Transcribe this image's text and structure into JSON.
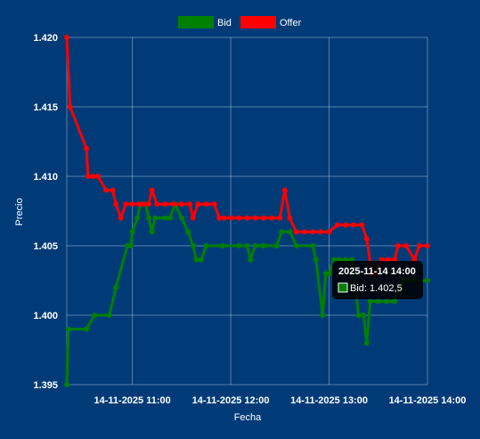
{
  "chart_data": {
    "type": "line",
    "xlabel": "Fecha",
    "ylabel": "Precio",
    "ylim": [
      1.395,
      1.42
    ],
    "xlim": [
      "2025-11-14T10:20",
      "2025-11-14T14:00"
    ],
    "y_ticks": [
      "1.395",
      "1.400",
      "1.405",
      "1.410",
      "1.415",
      "1.420"
    ],
    "x_ticks": [
      "14-11-2025 11:00",
      "14-11-2025 12:00",
      "14-11-2025 13:00",
      "14-11-2025 14:00"
    ],
    "grid": true,
    "legend_position": "top",
    "series": [
      {
        "name": "Bid",
        "color": "#008000",
        "points": [
          [
            "2025-11-14T10:20",
            1.395
          ],
          [
            "2025-11-14T10:21",
            1.399
          ],
          [
            "2025-11-14T10:32",
            1.399
          ],
          [
            "2025-11-14T10:37",
            1.4
          ],
          [
            "2025-11-14T10:46",
            1.4
          ],
          [
            "2025-11-14T10:50",
            1.402
          ],
          [
            "2025-11-14T10:57",
            1.405
          ],
          [
            "2025-11-14T10:59",
            1.405
          ],
          [
            "2025-11-14T11:00",
            1.406
          ],
          [
            "2025-11-14T11:03",
            1.407
          ],
          [
            "2025-11-14T11:05",
            1.408
          ],
          [
            "2025-11-14T11:08",
            1.408
          ],
          [
            "2025-11-14T11:10",
            1.407
          ],
          [
            "2025-11-14T11:12",
            1.406
          ],
          [
            "2025-11-14T11:14",
            1.407
          ],
          [
            "2025-11-14T11:20",
            1.407
          ],
          [
            "2025-11-14T11:23",
            1.407
          ],
          [
            "2025-11-14T11:26",
            1.408
          ],
          [
            "2025-11-14T11:30",
            1.407
          ],
          [
            "2025-11-14T11:34",
            1.406
          ],
          [
            "2025-11-14T11:37",
            1.405
          ],
          [
            "2025-11-14T11:39",
            1.404
          ],
          [
            "2025-11-14T11:42",
            1.404
          ],
          [
            "2025-11-14T11:45",
            1.405
          ],
          [
            "2025-11-14T11:55",
            1.405
          ],
          [
            "2025-11-14T12:05",
            1.405
          ],
          [
            "2025-11-14T12:10",
            1.405
          ],
          [
            "2025-11-14T12:12",
            1.404
          ],
          [
            "2025-11-14T12:15",
            1.405
          ],
          [
            "2025-11-14T12:20",
            1.405
          ],
          [
            "2025-11-14T12:28",
            1.405
          ],
          [
            "2025-11-14T12:31",
            1.406
          ],
          [
            "2025-11-14T12:36",
            1.406
          ],
          [
            "2025-11-14T12:40",
            1.405
          ],
          [
            "2025-11-14T12:50",
            1.405
          ],
          [
            "2025-11-14T12:52",
            1.404
          ],
          [
            "2025-11-14T12:56",
            1.4
          ],
          [
            "2025-11-14T12:58",
            1.403
          ],
          [
            "2025-11-14T13:00",
            1.403
          ],
          [
            "2025-11-14T13:03",
            1.404
          ],
          [
            "2025-11-14T13:06",
            1.404
          ],
          [
            "2025-11-14T13:10",
            1.404
          ],
          [
            "2025-11-14T13:14",
            1.404
          ],
          [
            "2025-11-14T13:18",
            1.4
          ],
          [
            "2025-11-14T13:21",
            1.4
          ],
          [
            "2025-11-14T13:23",
            1.398
          ],
          [
            "2025-11-14T13:25",
            1.401
          ],
          [
            "2025-11-14T13:30",
            1.401
          ],
          [
            "2025-11-14T13:35",
            1.401
          ],
          [
            "2025-11-14T13:40",
            1.401
          ],
          [
            "2025-11-14T13:45",
            1.4025
          ],
          [
            "2025-11-14T14:00",
            1.4025
          ]
        ]
      },
      {
        "name": "Offer",
        "color": "#ff0000",
        "points": [
          [
            "2025-11-14T10:20",
            1.42
          ],
          [
            "2025-11-14T10:22",
            1.415
          ],
          [
            "2025-11-14T10:32",
            1.412
          ],
          [
            "2025-11-14T10:33",
            1.41
          ],
          [
            "2025-11-14T10:36",
            1.41
          ],
          [
            "2025-11-14T10:39",
            1.41
          ],
          [
            "2025-11-14T10:44",
            1.409
          ],
          [
            "2025-11-14T10:48",
            1.409
          ],
          [
            "2025-11-14T10:50",
            1.408
          ],
          [
            "2025-11-14T10:53",
            1.407
          ],
          [
            "2025-11-14T10:56",
            1.408
          ],
          [
            "2025-11-14T11:00",
            1.408
          ],
          [
            "2025-11-14T11:04",
            1.408
          ],
          [
            "2025-11-14T11:07",
            1.408
          ],
          [
            "2025-11-14T11:10",
            1.408
          ],
          [
            "2025-11-14T11:12",
            1.409
          ],
          [
            "2025-11-14T11:15",
            1.408
          ],
          [
            "2025-11-14T11:20",
            1.408
          ],
          [
            "2025-11-14T11:25",
            1.408
          ],
          [
            "2025-11-14T11:30",
            1.408
          ],
          [
            "2025-11-14T11:35",
            1.408
          ],
          [
            "2025-11-14T11:37",
            1.407
          ],
          [
            "2025-11-14T11:40",
            1.408
          ],
          [
            "2025-11-14T11:45",
            1.408
          ],
          [
            "2025-11-14T11:50",
            1.408
          ],
          [
            "2025-11-14T11:53",
            1.407
          ],
          [
            "2025-11-14T11:56",
            1.407
          ],
          [
            "2025-11-14T12:00",
            1.407
          ],
          [
            "2025-11-14T12:05",
            1.407
          ],
          [
            "2025-11-14T12:10",
            1.407
          ],
          [
            "2025-11-14T12:15",
            1.407
          ],
          [
            "2025-11-14T12:20",
            1.407
          ],
          [
            "2025-11-14T12:25",
            1.407
          ],
          [
            "2025-11-14T12:30",
            1.407
          ],
          [
            "2025-11-14T12:33",
            1.409
          ],
          [
            "2025-11-14T12:36",
            1.407
          ],
          [
            "2025-11-14T12:40",
            1.406
          ],
          [
            "2025-11-14T12:45",
            1.406
          ],
          [
            "2025-11-14T12:50",
            1.406
          ],
          [
            "2025-11-14T12:55",
            1.406
          ],
          [
            "2025-11-14T13:00",
            1.406
          ],
          [
            "2025-11-14T13:05",
            1.4065
          ],
          [
            "2025-11-14T13:10",
            1.4065
          ],
          [
            "2025-11-14T13:15",
            1.4065
          ],
          [
            "2025-11-14T13:20",
            1.4065
          ],
          [
            "2025-11-14T13:23",
            1.4055
          ],
          [
            "2025-11-14T13:26",
            1.403
          ],
          [
            "2025-11-14T13:28",
            1.403
          ],
          [
            "2025-11-14T13:32",
            1.404
          ],
          [
            "2025-11-14T13:36",
            1.404
          ],
          [
            "2025-11-14T13:40",
            1.404
          ],
          [
            "2025-11-14T13:42",
            1.405
          ],
          [
            "2025-11-14T13:47",
            1.405
          ],
          [
            "2025-11-14T13:52",
            1.404
          ],
          [
            "2025-11-14T13:55",
            1.405
          ],
          [
            "2025-11-14T14:00",
            1.405
          ]
        ]
      }
    ],
    "tooltip": {
      "title": "2025-11-14 14:00",
      "body": "Bid: 1.402,5",
      "series": "Bid"
    }
  }
}
